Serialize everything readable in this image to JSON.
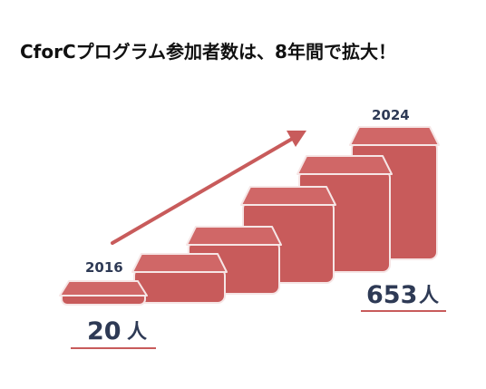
{
  "title": "CforCプログラム参加者数は、8年間で拡大！",
  "start": {
    "year": "2016",
    "number": "20",
    "unit": "人"
  },
  "end": {
    "year": "2024",
    "number": "653",
    "unit": "人"
  }
}
